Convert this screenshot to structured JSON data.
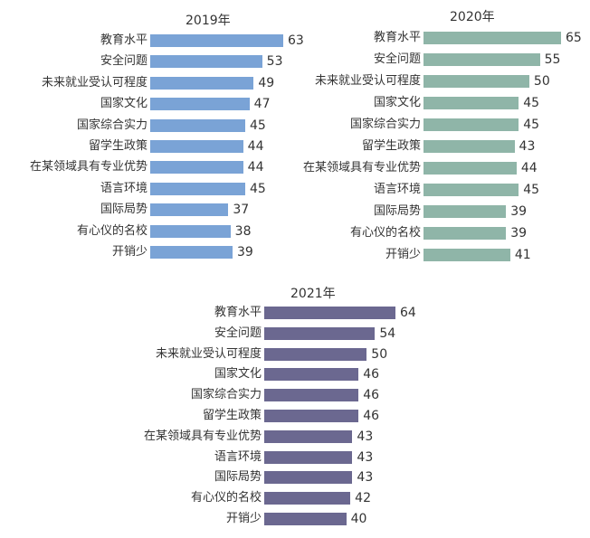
{
  "chart_data": [
    {
      "type": "bar",
      "orientation": "horizontal",
      "title": "2019年",
      "categories": [
        "教育水平",
        "安全问题",
        "未来就业受认可程度",
        "国家文化",
        "国家综合实力",
        "留学生政策",
        "在某领域具有专业优势",
        "语言环境",
        "国际局势",
        "有心仪的名校",
        "开销少"
      ],
      "values": [
        63,
        53,
        49,
        47,
        45,
        44,
        44,
        45,
        37,
        38,
        39
      ],
      "color": "#7aa3d6",
      "xlabel": "",
      "ylabel": "",
      "grid": false
    },
    {
      "type": "bar",
      "orientation": "horizontal",
      "title": "2020年",
      "categories": [
        "教育水平",
        "安全问题",
        "未来就业受认可程度",
        "国家文化",
        "国家综合实力",
        "留学生政策",
        "在某领域具有专业优势",
        "语言环境",
        "国际局势",
        "有心仪的名校",
        "开销少"
      ],
      "values": [
        65,
        55,
        50,
        45,
        45,
        43,
        44,
        45,
        39,
        39,
        41
      ],
      "color": "#8fb5a8",
      "xlabel": "",
      "ylabel": "",
      "grid": false
    },
    {
      "type": "bar",
      "orientation": "horizontal",
      "title": "2021年",
      "categories": [
        "教育水平",
        "安全问题",
        "未来就业受认可程度",
        "国家文化",
        "国家综合实力",
        "留学生政策",
        "在某领域具有专业优势",
        "语言环境",
        "国际局势",
        "有心仪的名校",
        "开销少"
      ],
      "values": [
        64,
        54,
        50,
        46,
        46,
        46,
        43,
        43,
        43,
        42,
        40
      ],
      "color": "#6b6890",
      "xlabel": "",
      "ylabel": "",
      "grid": false
    }
  ]
}
